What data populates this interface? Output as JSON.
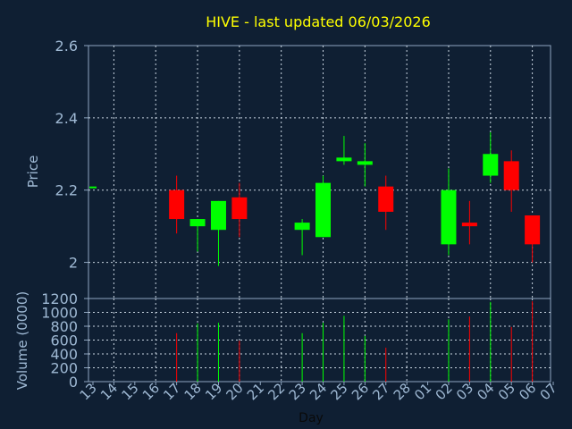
{
  "chart_data": [
    {
      "type": "candlestick",
      "title": "HIVE - last updated 06/03/2026",
      "ylabel": "Price",
      "ylim": [
        1.9,
        2.6
      ],
      "yticks": [
        2,
        2.2,
        2.4,
        2.6
      ],
      "ytick_labels": [
        "2",
        "2.2",
        "2.4",
        "2.6"
      ],
      "grid": true,
      "up_color": "#00ff00",
      "down_color": "#ff0000",
      "candles": [
        {
          "day": "13",
          "open": 2.21,
          "high": 2.21,
          "low": 2.21,
          "close": 2.21
        },
        {
          "day": "17",
          "open": 2.2,
          "high": 2.24,
          "low": 2.08,
          "close": 2.12
        },
        {
          "day": "18",
          "open": 2.1,
          "high": 2.12,
          "low": 2.03,
          "close": 2.12
        },
        {
          "day": "19",
          "open": 2.09,
          "high": 2.17,
          "low": 1.99,
          "close": 2.17
        },
        {
          "day": "20",
          "open": 2.18,
          "high": 2.22,
          "low": 2.07,
          "close": 2.12
        },
        {
          "day": "23",
          "open": 2.09,
          "high": 2.12,
          "low": 2.02,
          "close": 2.11
        },
        {
          "day": "24",
          "open": 2.07,
          "high": 2.24,
          "low": 2.07,
          "close": 2.22
        },
        {
          "day": "25",
          "open": 2.28,
          "high": 2.35,
          "low": 2.27,
          "close": 2.29
        },
        {
          "day": "26",
          "open": 2.27,
          "high": 2.33,
          "low": 2.21,
          "close": 2.28
        },
        {
          "day": "27",
          "open": 2.21,
          "high": 2.24,
          "low": 2.09,
          "close": 2.14
        },
        {
          "day": "02",
          "open": 2.05,
          "high": 2.26,
          "low": 2.02,
          "close": 2.2
        },
        {
          "day": "03",
          "open": 2.11,
          "high": 2.17,
          "low": 2.05,
          "close": 2.1
        },
        {
          "day": "04",
          "open": 2.24,
          "high": 2.36,
          "low": 2.22,
          "close": 2.3
        },
        {
          "day": "05",
          "open": 2.28,
          "high": 2.31,
          "low": 2.14,
          "close": 2.2
        },
        {
          "day": "06",
          "open": 2.13,
          "high": 2.13,
          "low": 2.0,
          "close": 2.05
        }
      ]
    },
    {
      "type": "bar",
      "xlabel": "Day",
      "ylabel": "Volume (0000)",
      "ylim": [
        0,
        1200
      ],
      "yticks": [
        0,
        200,
        400,
        600,
        800,
        1000,
        1200
      ],
      "ytick_labels": [
        "0",
        "200",
        "400",
        "600",
        "800",
        "1000",
        "1200"
      ],
      "grid": true,
      "categories": [
        "13",
        "14",
        "15",
        "16",
        "17",
        "18",
        "19",
        "20",
        "21",
        "22",
        "23",
        "24",
        "25",
        "26",
        "27",
        "28",
        "01",
        "02",
        "03",
        "04",
        "05",
        "06",
        "07"
      ],
      "bars": [
        {
          "day": "17",
          "value": 700,
          "direction": "down"
        },
        {
          "day": "18",
          "value": 840,
          "direction": "up"
        },
        {
          "day": "19",
          "value": 850,
          "direction": "up"
        },
        {
          "day": "20",
          "value": 590,
          "direction": "down"
        },
        {
          "day": "23",
          "value": 700,
          "direction": "up"
        },
        {
          "day": "24",
          "value": 850,
          "direction": "up"
        },
        {
          "day": "25",
          "value": 950,
          "direction": "up"
        },
        {
          "day": "26",
          "value": 660,
          "direction": "up"
        },
        {
          "day": "27",
          "value": 490,
          "direction": "down"
        },
        {
          "day": "02",
          "value": 900,
          "direction": "up"
        },
        {
          "day": "03",
          "value": 940,
          "direction": "down"
        },
        {
          "day": "04",
          "value": 1150,
          "direction": "up"
        },
        {
          "day": "05",
          "value": 790,
          "direction": "down"
        },
        {
          "day": "06",
          "value": 1160,
          "direction": "down"
        }
      ]
    }
  ]
}
